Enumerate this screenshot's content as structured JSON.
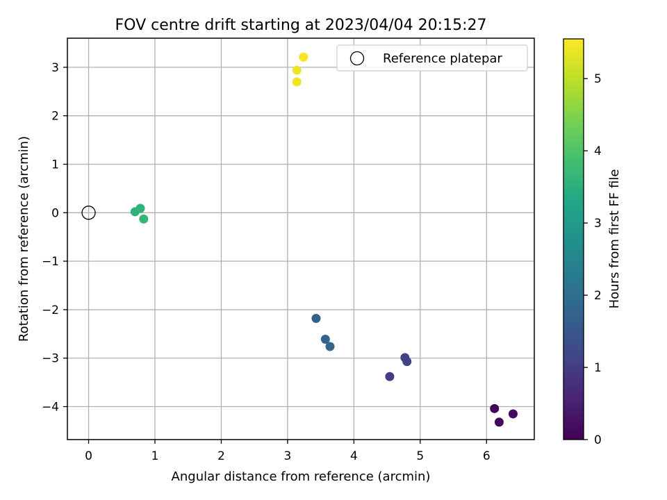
{
  "chart_data": {
    "type": "scatter",
    "title": "FOV centre drift starting at 2023/04/04 20:15:27",
    "xlabel": "Angular distance from reference (arcmin)",
    "ylabel": "Rotation from reference (arcmin)",
    "xlim": [
      -0.32,
      6.72
    ],
    "ylim": [
      -4.68,
      3.6
    ],
    "x_ticks": [
      0,
      1,
      2,
      3,
      4,
      5,
      6
    ],
    "x_tick_labels": [
      "0",
      "1",
      "2",
      "3",
      "4",
      "5",
      "6"
    ],
    "y_ticks": [
      -4,
      -3,
      -2,
      -1,
      0,
      1,
      2,
      3
    ],
    "y_tick_labels": [
      "−4",
      "−3",
      "−2",
      "−1",
      "0",
      "1",
      "2",
      "3"
    ],
    "grid": true,
    "legend": {
      "location": "top-right",
      "entries": [
        {
          "label": "Reference platepar",
          "marker": "open-circle"
        }
      ]
    },
    "reference_point": {
      "x": 0,
      "y": 0
    },
    "colorbar": {
      "label": "Hours from first FF file",
      "colormap": "viridis",
      "range": [
        0,
        5.55
      ],
      "ticks": [
        0,
        1,
        2,
        3,
        4,
        5
      ],
      "tick_labels": [
        "0",
        "1",
        "2",
        "3",
        "4",
        "5"
      ]
    },
    "points": [
      {
        "x": 6.12,
        "y": -4.04,
        "hours": 0.05
      },
      {
        "x": 6.19,
        "y": -4.32,
        "hours": 0.1
      },
      {
        "x": 6.4,
        "y": -4.15,
        "hours": 0.15
      },
      {
        "x": 4.54,
        "y": -3.38,
        "hours": 1.0
      },
      {
        "x": 4.77,
        "y": -2.99,
        "hours": 1.05
      },
      {
        "x": 4.8,
        "y": -3.07,
        "hours": 1.1
      },
      {
        "x": 3.43,
        "y": -2.18,
        "hours": 1.75
      },
      {
        "x": 3.57,
        "y": -2.61,
        "hours": 1.8
      },
      {
        "x": 3.64,
        "y": -2.76,
        "hours": 1.85
      },
      {
        "x": 0.7,
        "y": 0.02,
        "hours": 3.55
      },
      {
        "x": 0.78,
        "y": 0.09,
        "hours": 3.6
      },
      {
        "x": 0.83,
        "y": -0.13,
        "hours": 3.65
      },
      {
        "x": 3.14,
        "y": 2.94,
        "hours": 5.4
      },
      {
        "x": 3.14,
        "y": 2.7,
        "hours": 5.45
      },
      {
        "x": 3.24,
        "y": 3.21,
        "hours": 5.5
      }
    ]
  }
}
